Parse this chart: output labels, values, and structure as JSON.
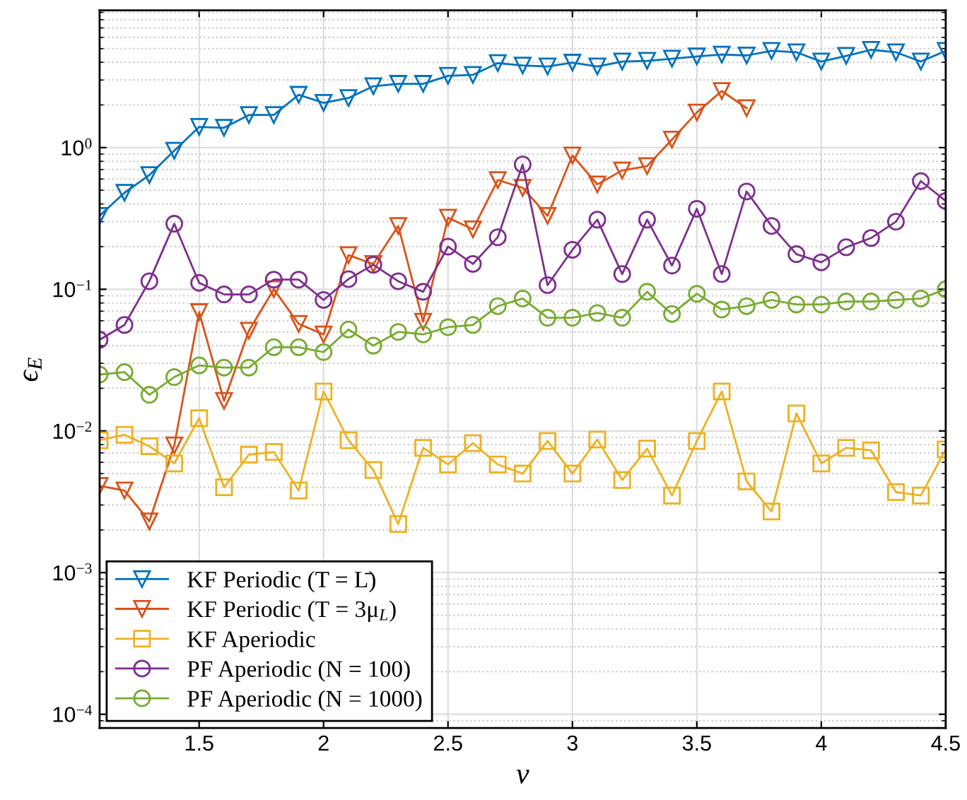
{
  "chart_data": {
    "type": "line",
    "xlabel": "ν",
    "ylabel": "ϵ$_{E}$",
    "log": "y",
    "grid": true,
    "legend": "bottom left",
    "x": [
      1.1,
      1.2,
      1.3,
      1.4,
      1.5,
      1.6,
      1.7,
      1.8,
      1.9,
      2.0,
      2.1,
      2.2,
      2.3,
      2.4,
      2.5,
      2.6,
      2.7,
      2.8,
      2.9,
      3.0,
      3.1,
      3.2,
      3.3,
      3.4,
      3.5,
      3.6,
      3.7,
      3.8,
      3.9,
      4.0,
      4.1,
      4.2,
      4.3,
      4.4,
      4.5
    ],
    "xlim": [
      1.1,
      4.5
    ],
    "xticks": [
      1.5,
      2,
      2.5,
      3,
      3.5,
      4,
      4.5
    ],
    "ylim": [
      8e-05,
      9.3
    ],
    "yticks": [
      {
        "value": 0.0001,
        "label": "10$^{−4}$"
      },
      {
        "value": 0.001,
        "label": "10$^{−3}$"
      },
      {
        "value": 0.01,
        "label": "10$^{−2}$"
      },
      {
        "value": 0.1,
        "label": "10$^{−1}$"
      },
      {
        "value": 1,
        "label": "10$^{0}$"
      }
    ],
    "series": [
      {
        "name": "KF Periodic (T = L̄)",
        "color": "#0072bd",
        "marker": "triangle",
        "values": [
          0.33,
          0.48,
          0.64,
          0.95,
          1.4,
          1.38,
          1.7,
          1.7,
          2.36,
          2.07,
          2.24,
          2.71,
          2.82,
          2.82,
          3.21,
          3.26,
          3.95,
          3.8,
          3.74,
          3.98,
          3.74,
          4.05,
          4.1,
          4.24,
          4.4,
          4.54,
          4.47,
          4.82,
          4.71,
          4.05,
          4.44,
          4.9,
          4.71,
          4.05,
          4.82
        ]
      },
      {
        "name": "KF Periodic (T = 3μ$_{L}$)",
        "color": "#d95319",
        "marker": "triangle",
        "values": [
          0.0041,
          0.0038,
          0.0023,
          0.0079,
          0.069,
          0.0163,
          0.051,
          0.1,
          0.057,
          0.048,
          0.174,
          0.151,
          0.28,
          0.059,
          0.32,
          0.265,
          0.59,
          0.52,
          0.33,
          0.88,
          0.55,
          0.69,
          0.74,
          1.14,
          1.77,
          2.51,
          1.9,
          null,
          null,
          null,
          null,
          null,
          null,
          null,
          null
        ]
      },
      {
        "name": "KF Aperiodic",
        "color": "#edb120",
        "marker": "square",
        "values": [
          0.0086,
          0.0094,
          0.0078,
          0.0059,
          0.0123,
          0.004,
          0.0068,
          0.0071,
          0.0038,
          0.019,
          0.0086,
          0.0053,
          0.0022,
          0.0076,
          0.0058,
          0.0082,
          0.0058,
          0.005,
          0.0085,
          0.005,
          0.0087,
          0.0045,
          0.0075,
          0.0035,
          0.0085,
          0.019,
          0.0044,
          0.0027,
          0.0133,
          0.0059,
          0.0076,
          0.0073,
          0.0037,
          0.0035,
          0.0074
        ]
      },
      {
        "name": "PF Aperiodic (N = 100)",
        "color": "#7e2f8e",
        "marker": "circle",
        "values": [
          0.044,
          0.056,
          0.114,
          0.29,
          0.111,
          0.092,
          0.092,
          0.117,
          0.117,
          0.084,
          0.118,
          0.149,
          0.114,
          0.096,
          0.2,
          0.151,
          0.233,
          0.76,
          0.107,
          0.19,
          0.31,
          0.128,
          0.31,
          0.147,
          0.37,
          0.128,
          0.49,
          0.28,
          0.177,
          0.155,
          0.198,
          0.23,
          0.3,
          0.58,
          0.42
        ]
      },
      {
        "name": "PF Aperiodic (N = 1000)",
        "color": "#77ac30",
        "marker": "circle",
        "values": [
          0.025,
          0.026,
          0.018,
          0.024,
          0.029,
          0.028,
          0.028,
          0.039,
          0.039,
          0.036,
          0.052,
          0.04,
          0.05,
          0.048,
          0.054,
          0.056,
          0.076,
          0.086,
          0.063,
          0.063,
          0.068,
          0.063,
          0.096,
          0.067,
          0.093,
          0.072,
          0.076,
          0.084,
          0.078,
          0.078,
          0.082,
          0.082,
          0.084,
          0.086,
          0.1
        ]
      }
    ]
  }
}
